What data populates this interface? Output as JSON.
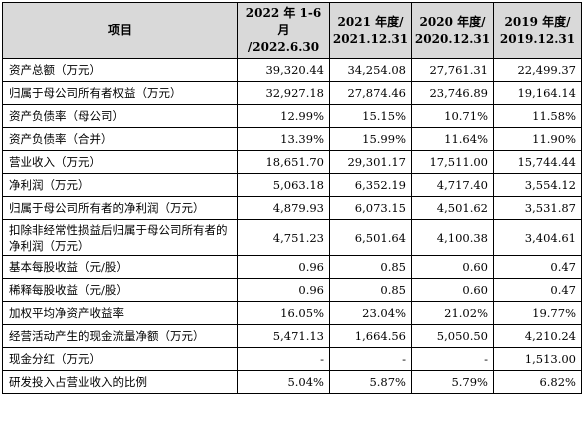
{
  "table": {
    "headers": [
      {
        "line1": "项目",
        "line2": ""
      },
      {
        "line1": "2022 年 1-6 月",
        "line2": "/2022.6.30"
      },
      {
        "line1": "2021 年度/",
        "line2": "2021.12.31"
      },
      {
        "line1": "2020 年度/",
        "line2": "2020.12.31"
      },
      {
        "line1": "2019 年度/",
        "line2": "2019.12.31"
      }
    ],
    "rows": [
      {
        "label": "资产总额（万元）",
        "values": [
          "39,320.44",
          "34,254.08",
          "27,761.31",
          "22,499.37"
        ]
      },
      {
        "label": "归属于母公司所有者权益（万元）",
        "values": [
          "32,927.18",
          "27,874.46",
          "23,746.89",
          "19,164.14"
        ]
      },
      {
        "label": "资产负债率（母公司）",
        "values": [
          "12.99%",
          "15.15%",
          "10.71%",
          "11.58%"
        ]
      },
      {
        "label": "资产负债率（合并）",
        "values": [
          "13.39%",
          "15.99%",
          "11.64%",
          "11.90%"
        ]
      },
      {
        "label": "营业收入（万元）",
        "values": [
          "18,651.70",
          "29,301.17",
          "17,511.00",
          "15,744.44"
        ]
      },
      {
        "label": "净利润（万元）",
        "values": [
          "5,063.18",
          "6,352.19",
          "4,717.40",
          "3,554.12"
        ]
      },
      {
        "label": "归属于母公司所有者的净利润（万元）",
        "values": [
          "4,879.93",
          "6,073.15",
          "4,501.62",
          "3,531.87"
        ]
      },
      {
        "label": "扣除非经常性损益后归属于母公司所有者的净利润（万元）",
        "values": [
          "4,751.23",
          "6,501.64",
          "4,100.38",
          "3,404.61"
        ]
      },
      {
        "label": "基本每股收益（元/股）",
        "values": [
          "0.96",
          "0.85",
          "0.60",
          "0.47"
        ]
      },
      {
        "label": "稀释每股收益（元/股）",
        "values": [
          "0.96",
          "0.85",
          "0.60",
          "0.47"
        ]
      },
      {
        "label": "加权平均净资产收益率",
        "values": [
          "16.05%",
          "23.04%",
          "21.02%",
          "19.77%"
        ]
      },
      {
        "label": "经营活动产生的现金流量净额（万元）",
        "values": [
          "5,471.13",
          "1,664.56",
          "5,050.50",
          "4,210.24"
        ]
      },
      {
        "label": "现金分红（万元）",
        "values": [
          "-",
          "-",
          "-",
          "1,513.00"
        ]
      },
      {
        "label": "研发投入占营业收入的比例",
        "values": [
          "5.04%",
          "5.87%",
          "5.79%",
          "6.82%"
        ]
      }
    ]
  }
}
